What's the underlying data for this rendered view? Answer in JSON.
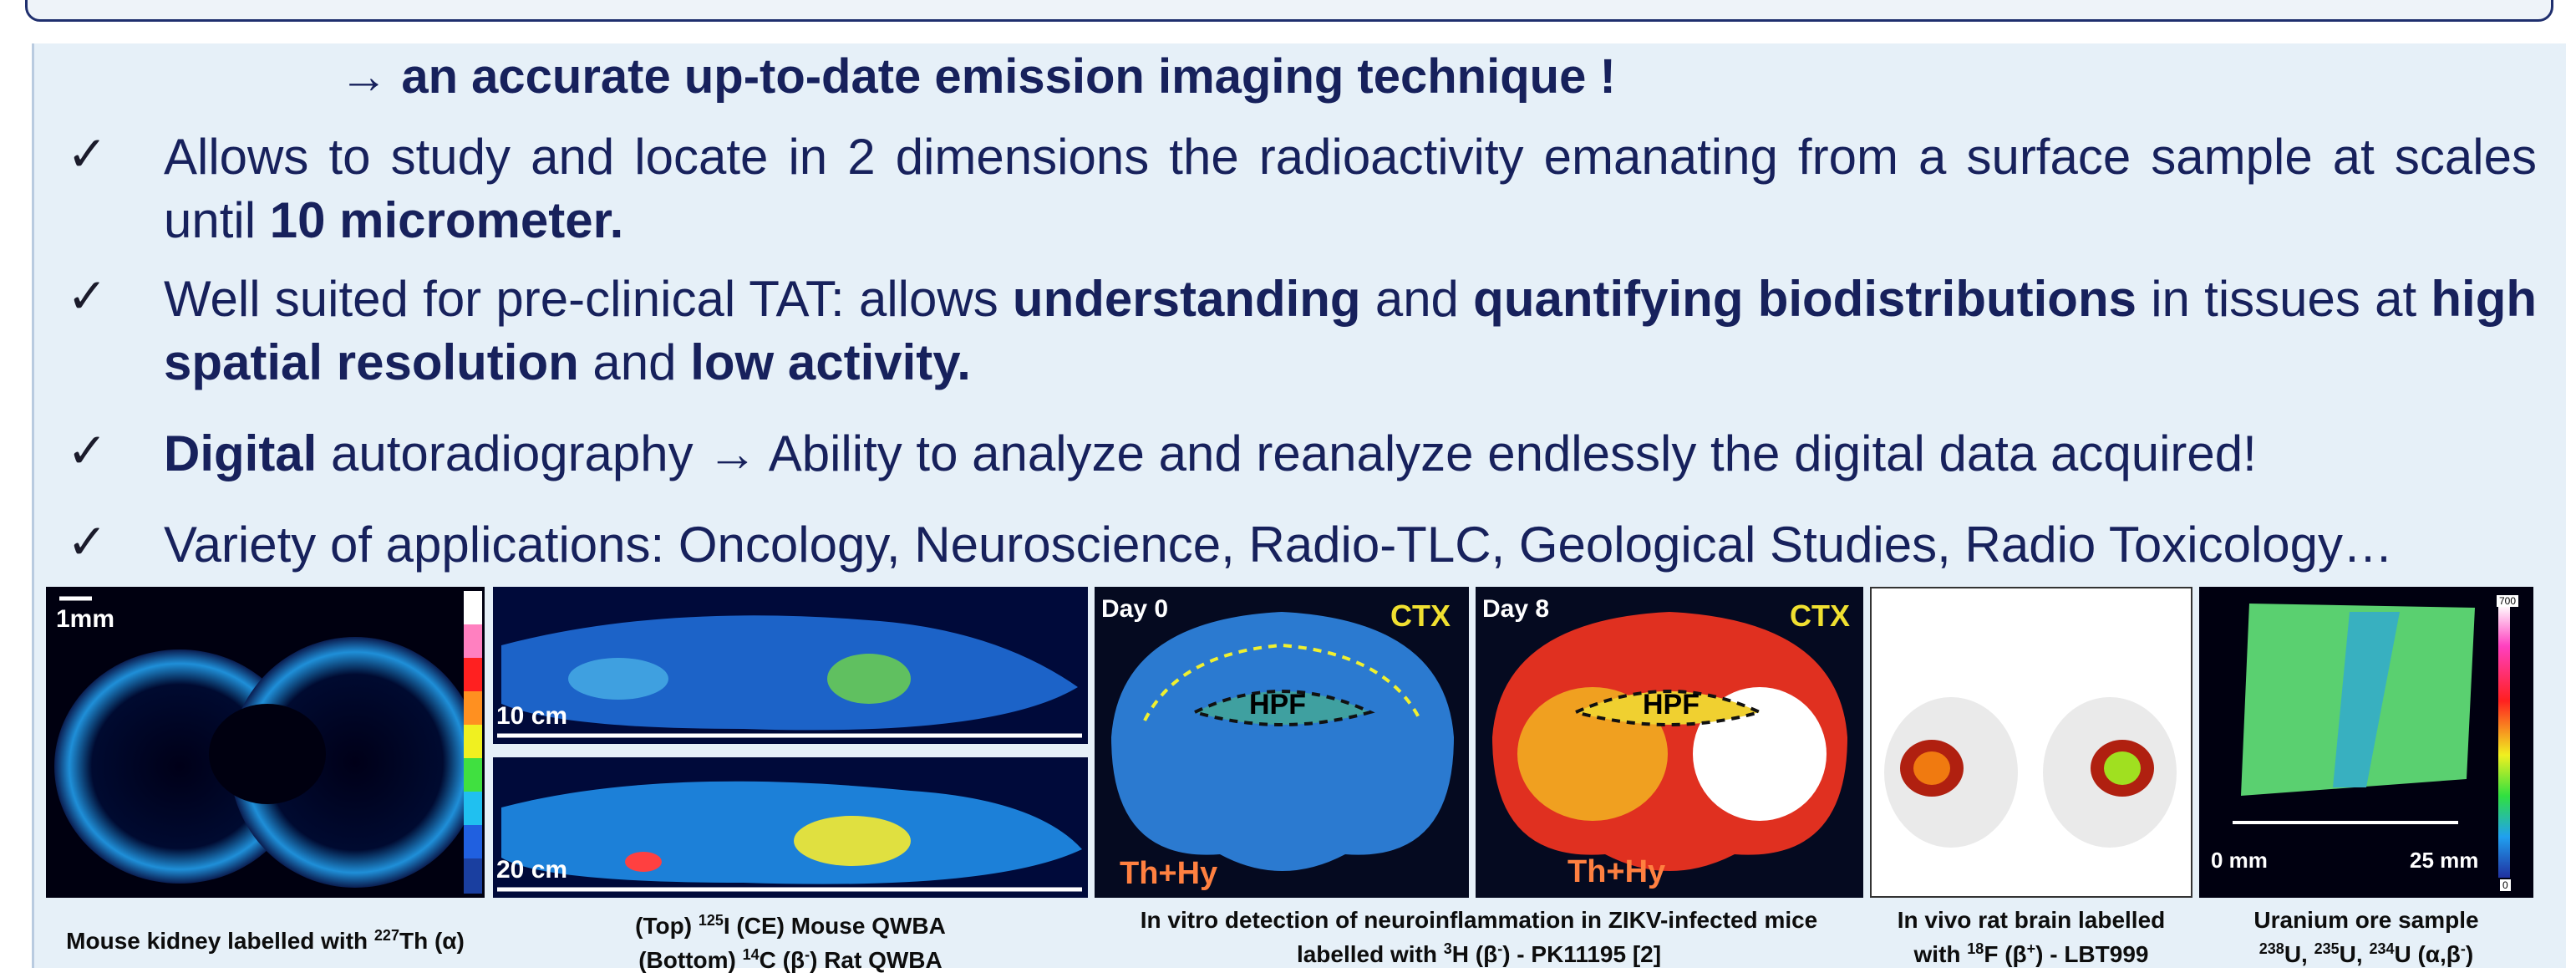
{
  "headline": "→ an accurate up-to-date emission imaging technique !",
  "bullets": [
    {
      "pre": "Allows to study and locate in 2 dimensions the radioactivity emanating  from a surface sample at scales until ",
      "bold": "10 micrometer."
    },
    {
      "p1": "Well suited for pre-clinical TAT: allows ",
      "b1": "understanding",
      "p2": " and ",
      "b2": "quantifying  biodistributions",
      "p3": " in tissues at ",
      "b3": "high spatial resolution",
      "p4": " and ",
      "b4": "low activity."
    },
    {
      "b1": "Digital",
      "p1": " autoradiography → Ability to analyze and reanalyze endlessly the digital data acquired!"
    },
    {
      "p1": "Variety of applications: Oncology, Neuroscience, Radio-TLC, Geological Studies, Radio Toxicology…"
    }
  ],
  "check_symbol": "✓",
  "images": {
    "kidney": {
      "scale": "1mm"
    },
    "qwba_top": {
      "scale": "10 cm"
    },
    "qwba_bottom": {
      "scale": "20 cm"
    },
    "brain_day0": {
      "day": "Day 0",
      "ctx": "CTX",
      "hpf": "HPF",
      "thhy": "Th+Hy"
    },
    "brain_day8": {
      "day": "Day 8",
      "ctx": "CTX",
      "hpf": "HPF",
      "thhy": "Th+Hy"
    },
    "uranium": {
      "left": "0 mm",
      "right": "25 mm",
      "cb_max": "700",
      "cb_min": "0"
    }
  },
  "captions": {
    "kidney_a": "Mouse kidney labelled with ",
    "kidney_sup": "227",
    "kidney_b": "Th (α)",
    "qwba_l1a": "(Top) ",
    "qwba_l1sup": "125",
    "qwba_l1b": "I (CE) Mouse QWBA",
    "qwba_l2a": "(Bottom) ",
    "qwba_l2sup": "14",
    "qwba_l2b": "C (β",
    "qwba_l2sup2": "-",
    "qwba_l2c": ") Rat QWBA",
    "brain_l1": "In vitro detection of neuroinflammation in ZIKV-infected mice",
    "brain_l2a": "labelled with ",
    "brain_l2sup": "3",
    "brain_l2b": "H (β",
    "brain_l2sup2": "-",
    "brain_l2c": ") - PK11195 [2]",
    "rat_l1": "In vivo rat brain labelled",
    "rat_l2a": "with ",
    "rat_l2sup": "18",
    "rat_l2b": "F (β",
    "rat_l2sup2": "+",
    "rat_l2c": ") - LBT999",
    "ur_l1": "Uranium ore sample",
    "ur_s1": "238",
    "ur_t1": "U, ",
    "ur_s2": "235",
    "ur_t2": "U, ",
    "ur_s3": "234",
    "ur_t3": "U (α,β",
    "ur_s4": "-",
    "ur_t4": ")"
  },
  "colors": {
    "text": "#17215c",
    "panel": "#e6f0f8",
    "border": "#1f2f6e"
  }
}
